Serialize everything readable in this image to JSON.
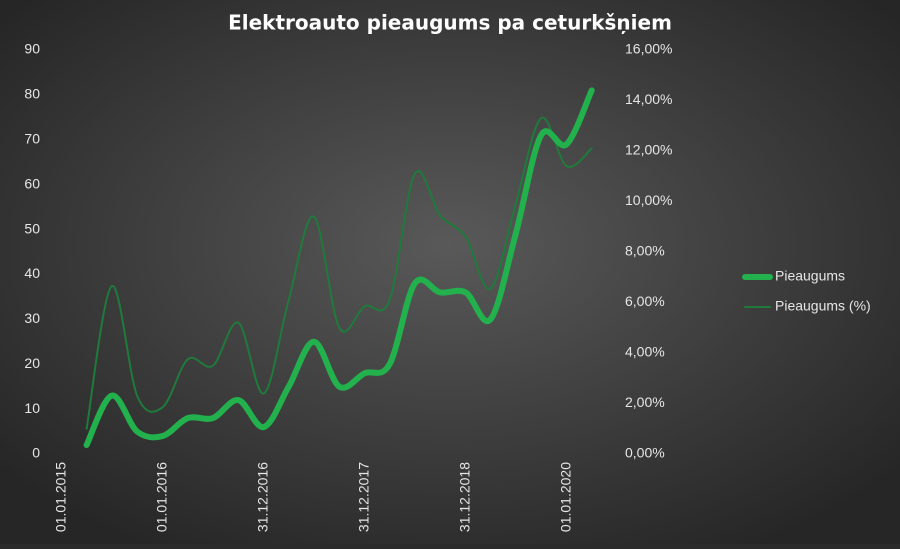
{
  "chart_data": {
    "type": "line",
    "title": "Elektroauto pieaugums pa ceturkšņiem",
    "x": [
      "31.03.2015",
      "30.06.2015",
      "30.09.2015",
      "31.12.2015",
      "31.03.2016",
      "30.06.2016",
      "30.09.2016",
      "31.12.2016",
      "31.03.2017",
      "30.06.2017",
      "30.09.2017",
      "31.12.2017",
      "31.03.2018",
      "30.06.2018",
      "30.09.2018",
      "31.12.2018",
      "31.03.2019",
      "30.06.2019",
      "30.09.2019",
      "31.12.2019",
      "31.03.2020"
    ],
    "xlim": [
      "01.01.2015",
      "30.04.2020"
    ],
    "xticks": [
      "01.01.2015",
      "01.01.2016",
      "31.12.2016",
      "31.12.2017",
      "31.12.2018",
      "01.01.2020"
    ],
    "ylim": [
      0,
      90
    ],
    "yticks": [
      0,
      10,
      20,
      30,
      40,
      50,
      60,
      70,
      80,
      90
    ],
    "y2lim": [
      0,
      16
    ],
    "y2ticks": [
      {
        "value": 0,
        "label": "0,00%"
      },
      {
        "value": 2,
        "label": "2,00%"
      },
      {
        "value": 4,
        "label": "4,00%"
      },
      {
        "value": 6,
        "label": "6,00%"
      },
      {
        "value": 8,
        "label": "8,00%"
      },
      {
        "value": 10,
        "label": "10,00%"
      },
      {
        "value": 12,
        "label": "12,00%"
      },
      {
        "value": 14,
        "label": "14,00%"
      },
      {
        "value": 16,
        "label": "16,00%"
      }
    ],
    "grid": false,
    "legend": "right",
    "series": [
      {
        "name": "Pieaugums",
        "color": "#22b14c",
        "values": [
          2,
          13,
          5,
          4,
          8,
          8,
          12,
          6,
          15,
          25,
          15,
          18,
          20,
          38,
          36,
          36,
          30,
          49,
          71,
          69,
          81
        ]
      },
      {
        "name": "Pieaugums (%)",
        "color": "#1f7a3b",
        "axis": "y2",
        "values": [
          1.0,
          6.65,
          2.3,
          1.85,
          3.75,
          3.5,
          5.2,
          2.4,
          6.1,
          9.4,
          5.0,
          5.85,
          6.1,
          11.1,
          9.45,
          8.6,
          6.55,
          9.9,
          13.3,
          11.4,
          12.1
        ]
      }
    ]
  }
}
